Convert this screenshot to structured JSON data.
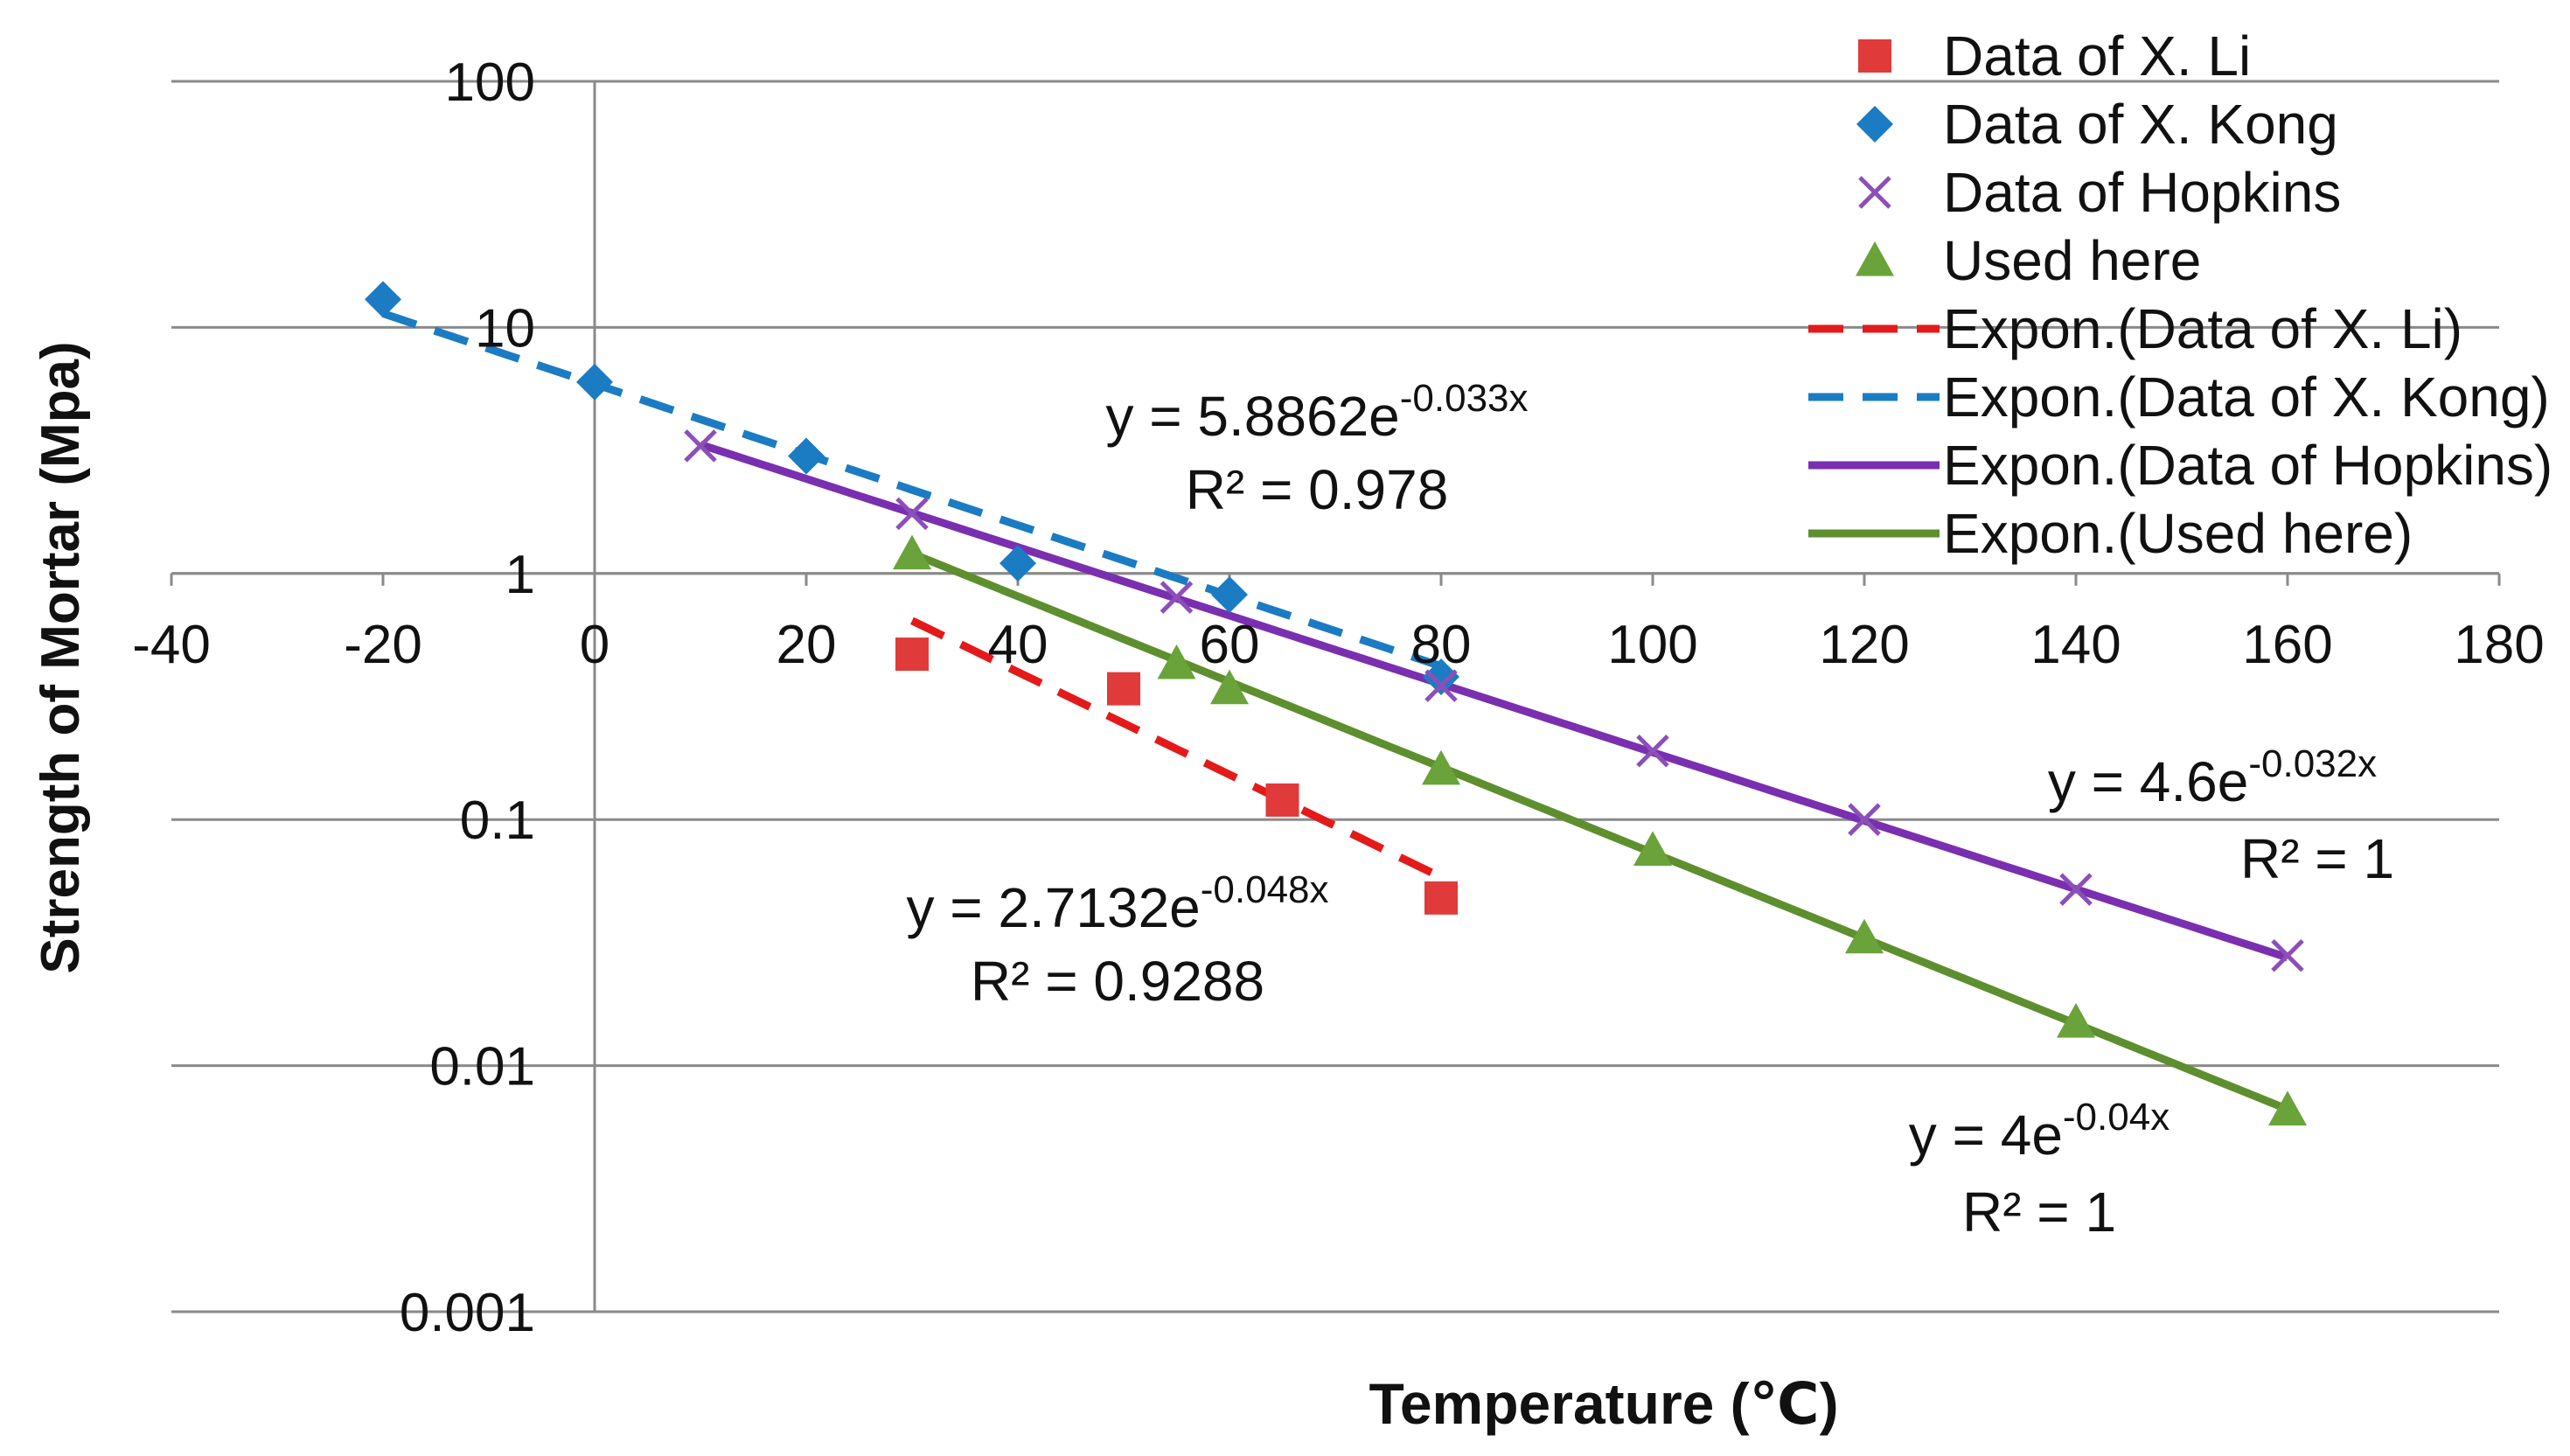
{
  "colors": {
    "li": "#e03a3a",
    "kong": "#1b7cc4",
    "hopkins": "#8c4fb8",
    "used": "#6aa33a",
    "li_line": "#e41a1a",
    "kong_line": "#1b7cc4",
    "hopkins_line": "#7a2fb0",
    "used_line": "#5e8f2e",
    "grid": "#8a8a8a",
    "text": "#111111"
  },
  "chart_data": {
    "type": "scatter",
    "y_scale": "log",
    "xlabel": "Temperature (℃)",
    "ylabel": "Strength of Mortar (Mpa)",
    "xlim": [
      -40,
      180
    ],
    "ylim": [
      0.001,
      100
    ],
    "x_ticks": [
      "-40",
      "-20",
      "0",
      "20",
      "40",
      "60",
      "80",
      "100",
      "120",
      "140",
      "160",
      "180"
    ],
    "y_ticks": [
      "0.001",
      "0.01",
      "0.1",
      "1",
      "10",
      "100"
    ],
    "grid": true,
    "legend_position": "top-right",
    "series": [
      {
        "name": "Data of X. Li",
        "marker": "square",
        "color_key": "li",
        "x": [
          30,
          50,
          65,
          80
        ],
        "y": [
          0.47,
          0.34,
          0.12,
          0.048
        ]
      },
      {
        "name": "Data of X. Kong",
        "marker": "diamond",
        "color_key": "kong",
        "x": [
          -20,
          0,
          20,
          40,
          60,
          80
        ],
        "y": [
          13,
          6,
          3,
          1.1,
          0.82,
          0.38
        ]
      },
      {
        "name": "Data of Hopkins",
        "marker": "x",
        "color_key": "hopkins",
        "x": [
          10,
          30,
          55,
          80,
          100,
          120,
          140,
          160
        ],
        "y": [
          3.3,
          1.75,
          0.8,
          0.35,
          0.19,
          0.1,
          0.052,
          0.028
        ]
      },
      {
        "name": "Used here",
        "marker": "triangle",
        "color_key": "used",
        "x": [
          30,
          55,
          60,
          80,
          100,
          120,
          140,
          160
        ],
        "y": [
          1.2,
          0.43,
          0.34,
          0.16,
          0.075,
          0.033,
          0.015,
          0.0066
        ]
      }
    ],
    "trendlines": [
      {
        "name": "Expon.(Data of X. Li)",
        "style": "dashed",
        "color_key": "li_line",
        "a": 2.7132,
        "b": -0.048,
        "x_range": [
          30,
          80
        ],
        "equation": {
          "coef": "y = 2.7132e",
          "exp": "-0.048x"
        },
        "r2": "R² = 0.9288"
      },
      {
        "name": "Expon.(Data of X. Kong)",
        "style": "dashed",
        "color_key": "kong_line",
        "a": 5.8862,
        "b": -0.033,
        "x_range": [
          -20,
          80
        ],
        "equation": {
          "coef": "y = 5.8862e",
          "exp": "-0.033x"
        },
        "r2": "R² = 0.978"
      },
      {
        "name": "Expon.(Data of Hopkins)",
        "style": "solid",
        "color_key": "hopkins_line",
        "a": 4.6,
        "b": -0.032,
        "x_range": [
          10,
          160
        ],
        "equation": {
          "coef": "y = 4.6e",
          "exp": "-0.032x"
        },
        "r2": "R² = 1"
      },
      {
        "name": "Expon.(Used here)",
        "style": "solid",
        "color_key": "used_line",
        "a": 4,
        "b": -0.04,
        "x_range": [
          30,
          160
        ],
        "equation": {
          "coef": "y = 4e",
          "exp": "-0.04x"
        },
        "r2": "R² = 1"
      }
    ]
  }
}
